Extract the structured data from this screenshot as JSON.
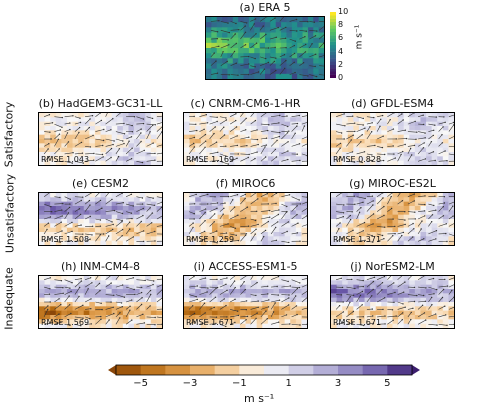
{
  "chart_data": {
    "type": "heatmap",
    "reference_panel": {
      "title": "(a) ERA 5",
      "colorbar": {
        "ticks": [
          "0",
          "2",
          "4",
          "6",
          "8",
          "10"
        ],
        "unit": "m s⁻¹",
        "range": [
          0,
          10
        ]
      }
    },
    "row_labels": [
      "Satisfactory",
      "Unsatisfactory",
      "Inadequate"
    ],
    "panels": [
      {
        "title": "(b) HadGEM3-GC31-LL",
        "rmse": "RMSE 1.043",
        "row": 0,
        "bias_pattern": "weak"
      },
      {
        "title": "(c) CNRM-CM6-1-HR",
        "rmse": "RMSE 1.169",
        "row": 0,
        "bias_pattern": "weak"
      },
      {
        "title": "(d) GFDL-ESM4",
        "rmse": "RMSE 0.828",
        "row": 0,
        "bias_pattern": "weak"
      },
      {
        "title": "(e) CESM2",
        "rmse": "RMSE 1.508",
        "row": 1,
        "bias_pattern": "blue-north"
      },
      {
        "title": "(f) MIROC6",
        "rmse": "RMSE 1.259",
        "row": 1,
        "bias_pattern": "mixed"
      },
      {
        "title": "(g) MIROC-ES2L",
        "rmse": "RMSE 1.371",
        "row": 1,
        "bias_pattern": "mixed"
      },
      {
        "title": "(h) INM-CM4-8",
        "rmse": "RMSE 1.569",
        "row": 2,
        "bias_pattern": "orange-south"
      },
      {
        "title": "(i) ACCESS-ESM1-5",
        "rmse": "RMSE 1.671",
        "row": 2,
        "bias_pattern": "orange-south"
      },
      {
        "title": "(j) NorESM2-LM",
        "rmse": "RMSE 1.671",
        "row": 2,
        "bias_pattern": "blue-north"
      }
    ],
    "colorbar": {
      "ticks": [
        "−5",
        "−3",
        "−1",
        "1",
        "3",
        "5"
      ],
      "range": [
        -6,
        6
      ],
      "label": "m s⁻¹"
    }
  }
}
